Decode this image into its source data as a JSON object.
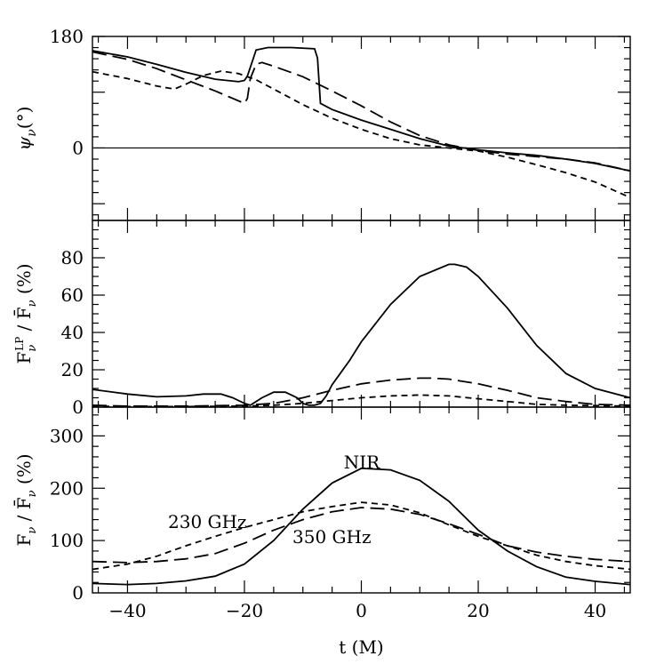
{
  "chart_data": [
    {
      "type": "line",
      "panel": "top",
      "ylabel": "ψ_ν(°)",
      "xlim": [
        -46,
        46
      ],
      "ylim": [
        -117,
        180
      ],
      "yticks": [
        180,
        0
      ],
      "series": [
        {
          "name": "NIR",
          "style": "solid",
          "x": [
            -46,
            -40,
            -35,
            -30,
            -25,
            -21,
            -20,
            -19.5,
            -19,
            -18,
            -16,
            -12,
            -8,
            -7.5,
            -7,
            -5,
            0,
            5,
            10,
            15,
            20,
            25,
            30,
            35,
            40,
            46
          ],
          "y": [
            157,
            147,
            135,
            122,
            111,
            107,
            109,
            116,
            130,
            158,
            162,
            162,
            160,
            145,
            72,
            62,
            45,
            30,
            15,
            3,
            -3,
            -8,
            -12,
            -18,
            -25,
            -37
          ]
        },
        {
          "name": "350 GHz",
          "style": "long-dash",
          "x": [
            -46,
            -40,
            -35,
            -30,
            -25,
            -22,
            -20,
            -19.5,
            -19,
            -18,
            -17,
            -15,
            -10,
            -5,
            0,
            5,
            10,
            15,
            20,
            25,
            30,
            35,
            40,
            46
          ],
          "y": [
            155,
            143,
            128,
            110,
            92,
            80,
            72,
            80,
            112,
            135,
            138,
            132,
            115,
            92,
            68,
            42,
            20,
            5,
            -4,
            -10,
            -14,
            -18,
            -24,
            -37
          ]
        },
        {
          "name": "230 GHz",
          "style": "short-dash",
          "x": [
            -46,
            -40,
            -35,
            -32,
            -30,
            -27,
            -24,
            -21,
            -18,
            -15,
            -10,
            -5,
            0,
            5,
            10,
            15,
            20,
            25,
            30,
            35,
            40,
            46
          ],
          "y": [
            123,
            112,
            100,
            95,
            103,
            117,
            124,
            120,
            110,
            95,
            70,
            48,
            30,
            15,
            5,
            0,
            -5,
            -15,
            -27,
            -40,
            -55,
            -80
          ]
        }
      ]
    },
    {
      "type": "line",
      "panel": "middle",
      "ylabel": "F_ν^LP / F̄_ν (%)",
      "xlim": [
        -46,
        46
      ],
      "ylim": [
        0,
        100
      ],
      "yticks": [
        0,
        20,
        40,
        60,
        80
      ],
      "series": [
        {
          "name": "NIR",
          "style": "solid",
          "x": [
            -46,
            -40,
            -35,
            -30,
            -27,
            -24,
            -22,
            -20,
            -19,
            -17,
            -15,
            -13,
            -11,
            -10,
            -9,
            -8,
            -7,
            -6,
            -5,
            -2,
            0,
            5,
            10,
            15,
            16,
            18,
            20,
            25,
            30,
            35,
            40,
            46
          ],
          "y": [
            9.5,
            7,
            5.5,
            6,
            7,
            7,
            5,
            2,
            1,
            5,
            8,
            8,
            5,
            2,
            1,
            1,
            2,
            6,
            12,
            25,
            35,
            55,
            70,
            76.5,
            76.5,
            75,
            70,
            53,
            33,
            18,
            10,
            5
          ]
        },
        {
          "name": "350 GHz",
          "style": "long-dash",
          "x": [
            -46,
            -40,
            -30,
            -20,
            -15,
            -10,
            -5,
            0,
            5,
            10,
            12,
            15,
            20,
            25,
            30,
            35,
            40,
            46
          ],
          "y": [
            1,
            0.5,
            0.5,
            1,
            2,
            5,
            9,
            12.5,
            14.5,
            15.5,
            15.5,
            15,
            12.5,
            9,
            5,
            3,
            1.5,
            1
          ]
        },
        {
          "name": "230 GHz",
          "style": "short-dash",
          "x": [
            -46,
            -40,
            -30,
            -20,
            -15,
            -10,
            -5,
            0,
            5,
            10,
            15,
            20,
            25,
            30,
            35,
            40,
            46
          ],
          "y": [
            0.5,
            0.3,
            0.3,
            0.5,
            1,
            2,
            3.5,
            5,
            6,
            6.5,
            6,
            4.5,
            3,
            1.5,
            1,
            0.8,
            0.5
          ]
        }
      ]
    },
    {
      "type": "line",
      "panel": "bottom",
      "xlabel": "t (M)",
      "ylabel": "F_ν / F̄_ν (%)",
      "xlim": [
        -46,
        46
      ],
      "ylim": [
        0,
        355
      ],
      "yticks": [
        0,
        100,
        200,
        300
      ],
      "xticks": [
        -40,
        -20,
        0,
        20,
        40
      ],
      "annotations": [
        "NIR",
        "230 GHz",
        "350 GHz"
      ],
      "series": [
        {
          "name": "NIR",
          "style": "solid",
          "x": [
            -46,
            -40,
            -35,
            -30,
            -25,
            -20,
            -15,
            -10,
            -5,
            0,
            5,
            10,
            15,
            20,
            25,
            30,
            35,
            40,
            46
          ],
          "y": [
            18,
            16,
            18,
            23,
            32,
            55,
            100,
            160,
            210,
            238,
            235,
            215,
            175,
            120,
            80,
            50,
            30,
            22,
            16
          ]
        },
        {
          "name": "350 GHz",
          "style": "long-dash",
          "x": [
            -46,
            -40,
            -35,
            -30,
            -25,
            -20,
            -15,
            -10,
            -5,
            0,
            5,
            10,
            15,
            20,
            25,
            30,
            35,
            40,
            46
          ],
          "y": [
            60,
            58,
            60,
            65,
            75,
            95,
            120,
            140,
            155,
            163,
            160,
            150,
            132,
            112,
            90,
            78,
            70,
            64,
            60
          ]
        },
        {
          "name": "230 GHz",
          "style": "short-dash",
          "x": [
            -46,
            -40,
            -35,
            -30,
            -25,
            -20,
            -15,
            -10,
            -5,
            0,
            5,
            10,
            15,
            20,
            25,
            30,
            35,
            40,
            46
          ],
          "y": [
            45,
            55,
            70,
            90,
            108,
            125,
            140,
            155,
            165,
            173,
            168,
            153,
            130,
            108,
            90,
            72,
            60,
            52,
            45
          ]
        }
      ]
    }
  ]
}
